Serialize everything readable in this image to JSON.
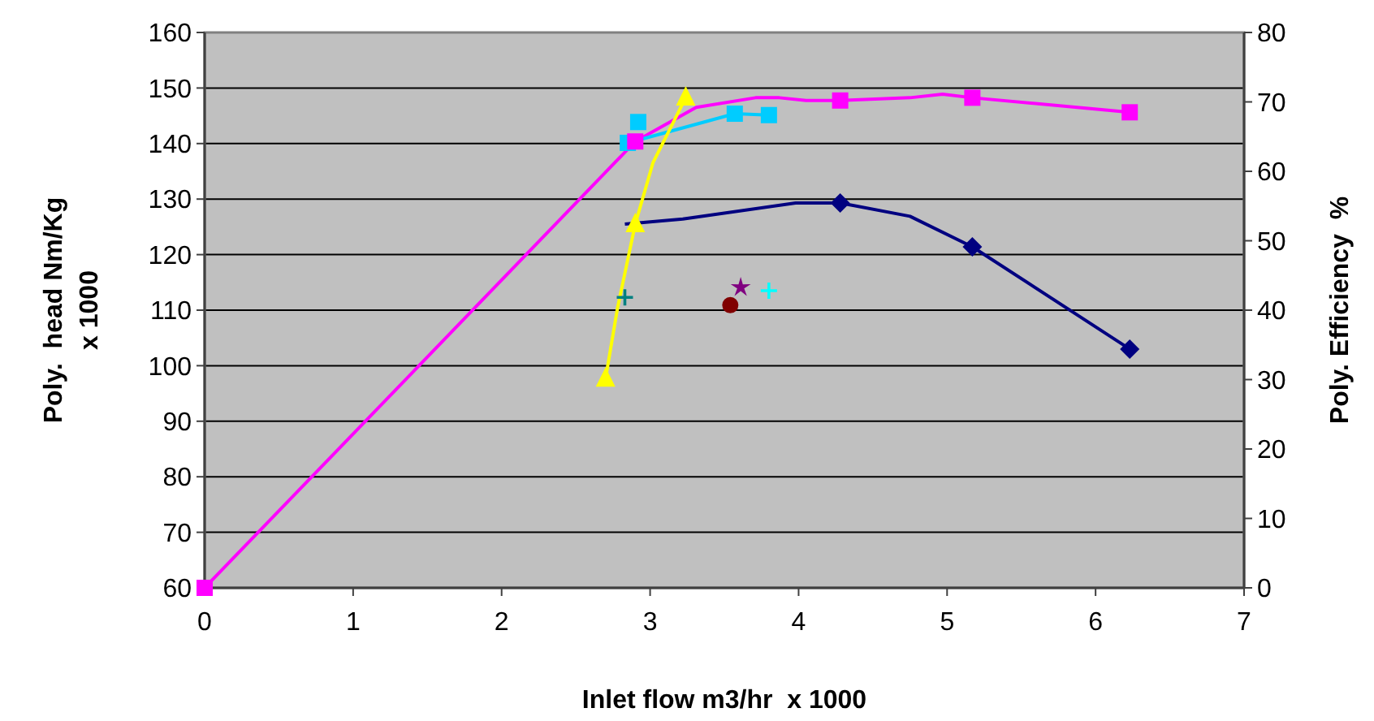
{
  "chart_data": {
    "type": "line",
    "xlabel": "Inlet flow m3/hr  x 1000",
    "ylabel": "Poly.  head Nm/Kg\nx 1000",
    "y2label": "Poly. Efficiency  %",
    "xlim": [
      0,
      7
    ],
    "xticks": [
      0,
      1,
      2,
      3,
      4,
      5,
      6,
      7
    ],
    "ylim": [
      60,
      160
    ],
    "yticks": [
      60,
      70,
      80,
      90,
      100,
      110,
      120,
      130,
      140,
      150,
      160
    ],
    "y2lim": [
      0,
      80
    ],
    "y2ticks": [
      0,
      10,
      20,
      30,
      40,
      50,
      60,
      70,
      80
    ],
    "grid": "y",
    "series": [
      {
        "color": "#ff00ff",
        "axis": "y2",
        "marker": "none",
        "x": [
          0,
          2.9,
          3.31,
          3.71,
          3.87,
          4.05,
          4.28,
          4.75,
          4.97,
          5.17,
          6.23
        ],
        "values": [
          0,
          64.3,
          69.2,
          70.6,
          70.6,
          70.2,
          70.2,
          70.6,
          71.1,
          70.6,
          68.5
        ]
      },
      {
        "color": "#000080",
        "marker": "none",
        "x": [
          2.83,
          3.22,
          3.98,
          4.28,
          4.75,
          5.17,
          6.23
        ],
        "values": [
          125.5,
          126.4,
          129.3,
          129.3,
          126.9,
          121.4,
          103
        ]
      },
      {
        "type": "scatter",
        "color": "#000080",
        "marker": "diamond",
        "x": [
          4.28,
          5.17,
          6.23
        ],
        "values": [
          129.3,
          121.4,
          103
        ]
      },
      {
        "color": "#00ccff",
        "axis": "y2",
        "marker": "none",
        "x": [
          2.85,
          3.57,
          3.8
        ],
        "values": [
          64.1,
          68.3,
          68.1
        ]
      },
      {
        "type": "scatter",
        "color": "#00ccff",
        "axis": "y2",
        "marker": "square",
        "x": [
          2.85,
          2.92,
          3.57,
          3.8
        ],
        "values": [
          64.1,
          67.1,
          68.3,
          68.1
        ]
      },
      {
        "color": "#ffff00",
        "marker": "none",
        "x": [
          2.7,
          2.78,
          2.9,
          3.02,
          3.24
        ],
        "values": [
          97.7,
          110.3,
          125.5,
          136.6,
          148.3
        ]
      },
      {
        "type": "scatter",
        "color": "#ffff00",
        "marker": "triangle",
        "x": [
          2.7,
          2.9,
          3.24
        ],
        "values": [
          97.7,
          125.5,
          148.3
        ]
      },
      {
        "type": "scatter",
        "color": "#008080",
        "marker": "cross",
        "x": [
          2.83
        ],
        "values": [
          112.3
        ]
      },
      {
        "type": "scatter",
        "color": "#800000",
        "marker": "circle",
        "x": [
          3.54
        ],
        "values": [
          110.9
        ]
      },
      {
        "type": "scatter",
        "color": "#800080",
        "marker": "star",
        "x": [
          3.61
        ],
        "values": [
          114.1
        ]
      },
      {
        "type": "scatter",
        "color": "#00ffff",
        "marker": "cross",
        "x": [
          3.8
        ],
        "values": [
          113.5
        ]
      },
      {
        "type": "scatter",
        "color": "#ff00ff",
        "axis": "y2",
        "marker": "square",
        "x": [
          0,
          2.9,
          4.28,
          5.17,
          6.23
        ],
        "values": [
          0,
          64.3,
          70.2,
          70.6,
          68.5
        ]
      }
    ]
  }
}
